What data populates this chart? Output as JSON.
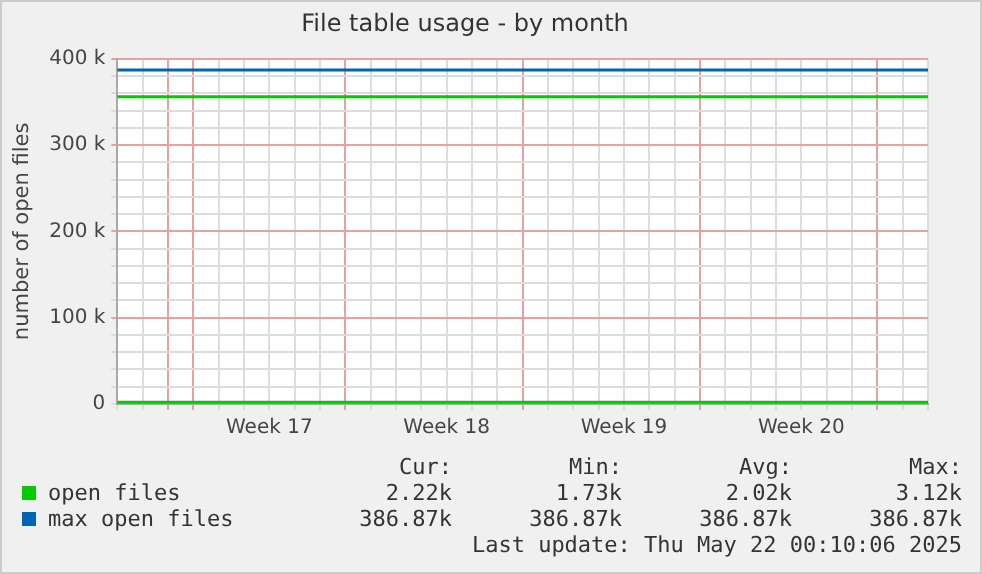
{
  "chart_data": {
    "type": "line",
    "title": "File table usage - by month",
    "ylabel": "number of open files",
    "categories": [
      null,
      null,
      null,
      null,
      null,
      null,
      "Week 17",
      null,
      null,
      null,
      null,
      null,
      null,
      "Week 18",
      null,
      null,
      null,
      null,
      null,
      null,
      "Week 19",
      null,
      null,
      null,
      null,
      null,
      null,
      "Week 20",
      null,
      null,
      null,
      null,
      null
    ],
    "ylim": [
      0,
      400000
    ],
    "yticks": [
      0,
      {
        "value": 20000,
        "label": null
      },
      {
        "value": 40000,
        "label": null
      },
      {
        "value": 60000,
        "label": null
      },
      {
        "value": 80000,
        "label": null
      },
      {
        "value": 100000,
        "label": "100 k"
      },
      {
        "value": 120000,
        "label": null
      },
      {
        "value": 140000,
        "label": null
      },
      {
        "value": 160000,
        "label": null
      },
      {
        "value": 180000,
        "label": null
      },
      {
        "value": 200000,
        "label": "200 k"
      },
      {
        "value": 220000,
        "label": null
      },
      {
        "value": 240000,
        "label": null
      },
      {
        "value": 260000,
        "label": null
      },
      {
        "value": 280000,
        "label": null
      },
      {
        "value": 300000,
        "label": "300 k"
      },
      {
        "value": 320000,
        "label": null
      },
      {
        "value": 340000,
        "label": null
      },
      {
        "value": 360000,
        "label": null
      },
      {
        "value": 380000,
        "label": null
      },
      {
        "value": 400000,
        "label": "400 k"
      }
    ],
    "series": [
      {
        "name": "open files",
        "color": "#00cc00",
        "values": [
          2000,
          2000,
          2000,
          2000,
          2000,
          2000,
          2000,
          2000,
          2000,
          2000,
          2000,
          2000,
          2000,
          2000,
          2000,
          2000,
          2000,
          2000,
          2000,
          2000,
          2000,
          2000,
          2000,
          2000,
          2000,
          2000,
          2000,
          2000,
          2000,
          2000,
          2000,
          2000,
          2000
        ]
      },
      {
        "name": "max open files",
        "color": "#0066b3",
        "values": [
          387000,
          387000,
          387000,
          387000,
          387000,
          387000,
          387000,
          387000,
          387000,
          387000,
          387000,
          387000,
          387000,
          387000,
          387000,
          387000,
          387000,
          387000,
          387000,
          387000,
          387000,
          387000,
          387000,
          387000,
          387000,
          387000,
          387000,
          387000,
          387000,
          387000,
          387000,
          387000,
          387000
        ]
      }
    ],
    "ref_lines": [
      {
        "axis": "y",
        "value": 356000,
        "color": "#00cc00"
      }
    ],
    "grid": true,
    "legend": "bottom",
    "marker": "none",
    "line_style": "solid",
    "annotations": [
      "Cur:",
      "Min:",
      "Avg:",
      "Max:",
      "2.22k",
      "1.73k",
      "2.02k",
      "3.12k",
      "386.87k",
      "386.87k",
      "386.87k",
      "386.87k",
      "Last update: Thu May 22 00:10:06 2025"
    ]
  }
}
